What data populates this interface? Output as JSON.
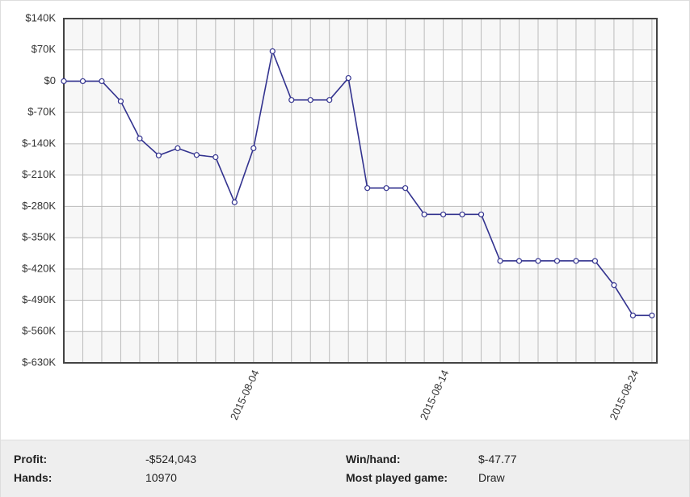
{
  "chart_data": {
    "type": "line",
    "categories": [
      null,
      null,
      null,
      null,
      null,
      null,
      null,
      null,
      null,
      null,
      "2015-08-04",
      null,
      null,
      null,
      null,
      null,
      null,
      null,
      null,
      null,
      "2015-08-14",
      null,
      null,
      null,
      null,
      null,
      null,
      null,
      null,
      null,
      "2015-08-24",
      null
    ],
    "series": [
      {
        "color": "#33338f",
        "values": [
          0,
          0,
          0,
          -45,
          -128,
          -166,
          -150,
          -165,
          -170,
          -271,
          -150,
          67,
          -42,
          -42,
          -42,
          7,
          -239,
          -239,
          -239,
          -298,
          -298,
          -298,
          -298,
          -402,
          -402,
          -402,
          -402,
          -402,
          -402,
          -456,
          -524,
          -524
        ]
      }
    ],
    "ylim": [
      -630,
      140
    ],
    "yticks": [
      {
        "value": -630,
        "label": "$-630K"
      },
      {
        "value": -560,
        "label": "$-560K"
      },
      {
        "value": -490,
        "label": "$-490K"
      },
      {
        "value": -420,
        "label": "$-420K"
      },
      {
        "value": -350,
        "label": "$-350K"
      },
      {
        "value": -280,
        "label": "$-280K"
      },
      {
        "value": -210,
        "label": "$-210K"
      },
      {
        "value": -140,
        "label": "$-140K"
      },
      {
        "value": -70,
        "label": "$-70K"
      },
      {
        "value": 0,
        "label": "$0"
      },
      {
        "value": 70,
        "label": "$70K"
      },
      {
        "value": 140,
        "label": "$140K"
      }
    ],
    "grid": true
  },
  "stats": [
    {
      "label": "Profit:",
      "value": "-$524,043"
    },
    {
      "label": "Win/hand:",
      "value": "$-47.77"
    },
    {
      "label": "Hands:",
      "value": "10970"
    },
    {
      "label": "Most played game:",
      "value": "Draw"
    }
  ]
}
